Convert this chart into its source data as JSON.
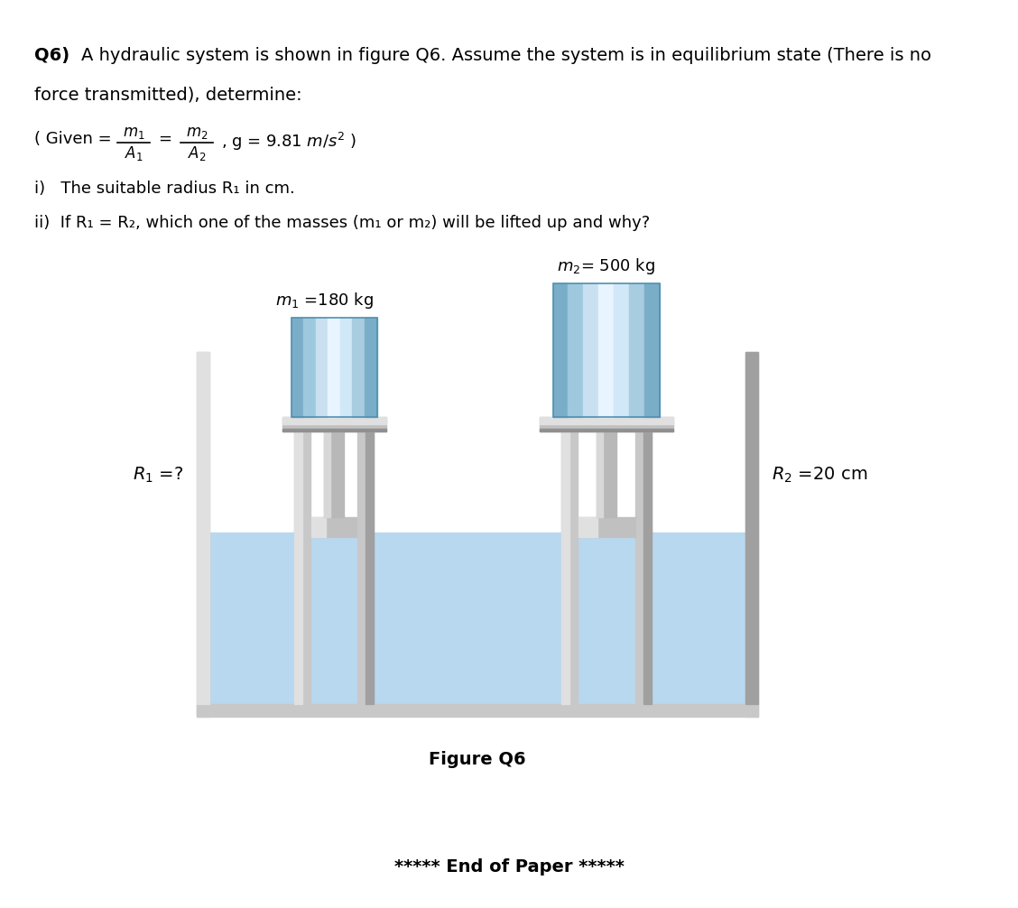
{
  "bg_color": "#ffffff",
  "fig_width": 11.28,
  "fig_height": 10.06,
  "m1_label": "$m_1$ =180 kg",
  "m2_label": "$m_2$= 500 kg",
  "R1_label": "$R_1$ =?",
  "R2_label": "$R_2$ =20 cm",
  "figure_label": "Figure Q6",
  "end_text": "***** End of Paper *****",
  "water_color": "#b8d8ef",
  "water_dark": "#a0c8e4",
  "wall_color": "#c8c8c8",
  "wall_light": "#e0e0e0",
  "wall_dark": "#a0a0a0",
  "piston_color": "#c0c0c0",
  "piston_light": "#e0e0e0",
  "piston_dark": "#909090",
  "block_colors": [
    "#7aaec8",
    "#9ec8de",
    "#c8e0f0",
    "#e8f4ff",
    "#d0e8f8",
    "#a8cce0",
    "#7aaec8"
  ],
  "rod_color": "#b8b8b8",
  "rod_light": "#d8d8d8",
  "rod_dark": "#909090"
}
